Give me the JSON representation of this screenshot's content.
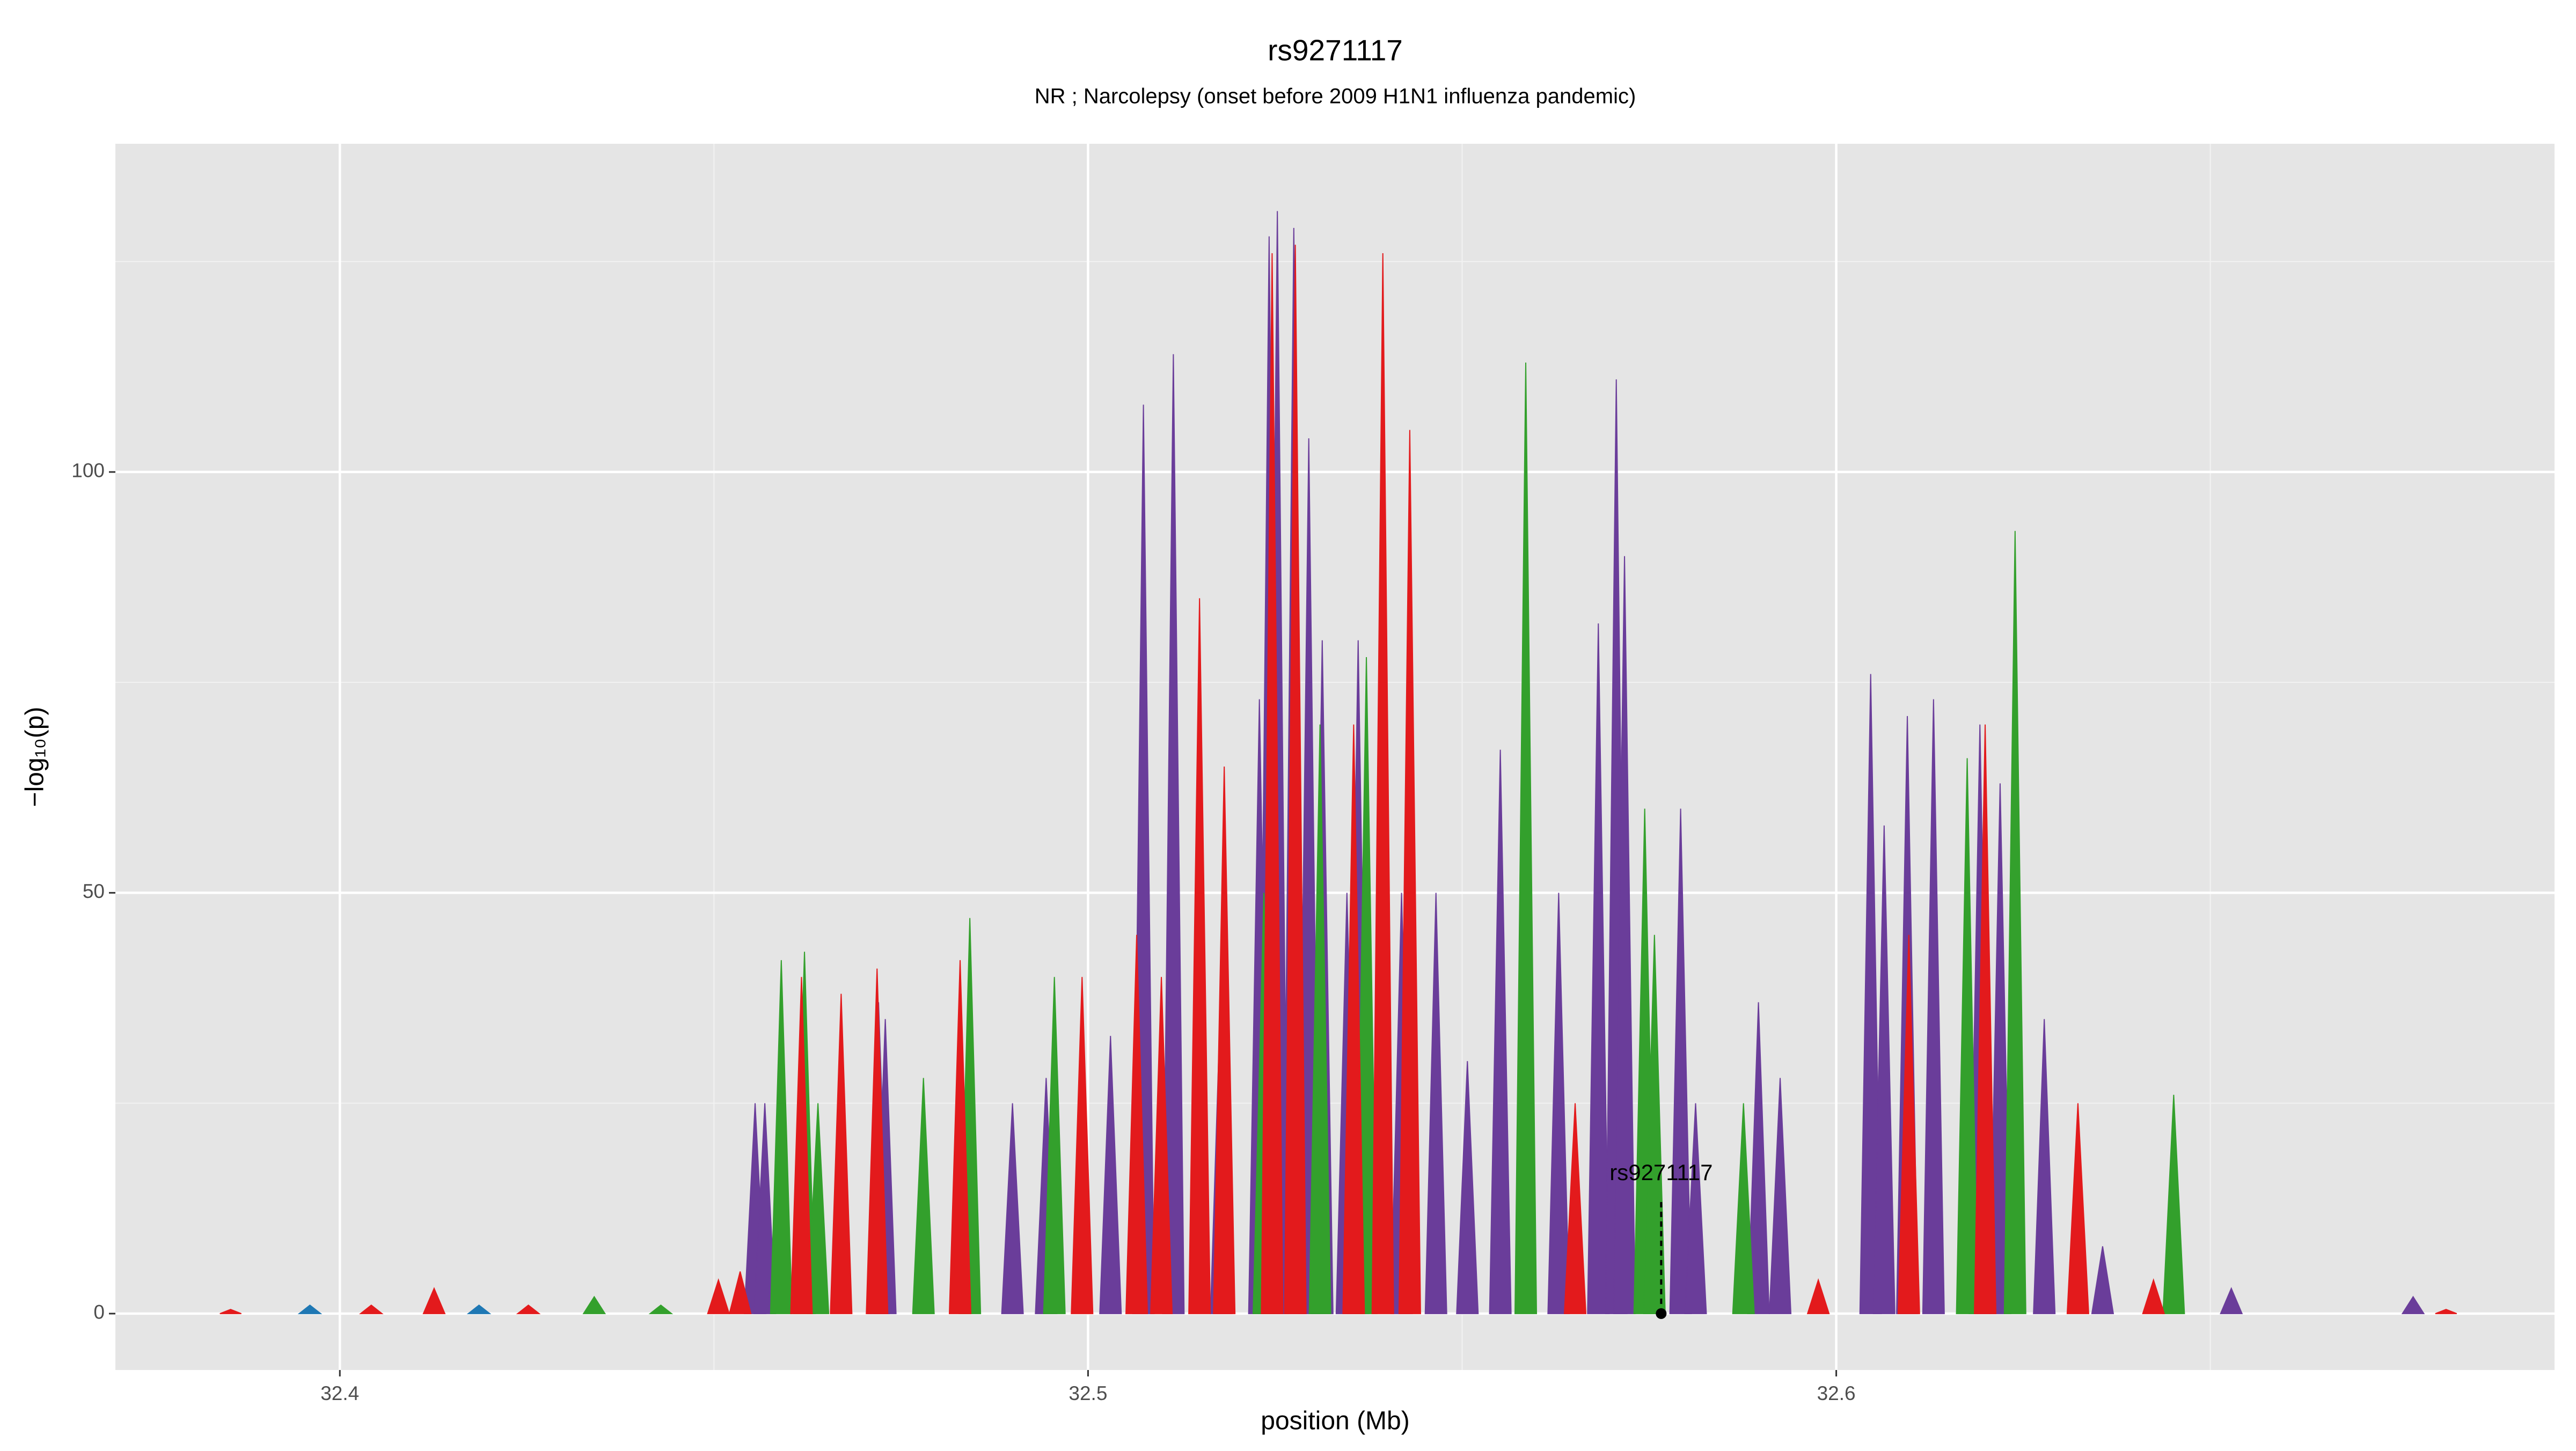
{
  "chart_data": {
    "type": "area",
    "title": "rs9271117",
    "subtitle": "NR ; Narcolepsy (onset before 2009 H1N1 influenza pandemic)",
    "x_label": "position (Mb)",
    "y_label": "−log₁₀(p)",
    "xlim": [
      32.37,
      32.696
    ],
    "xticks": [
      32.4,
      32.5,
      32.6
    ],
    "ylim": [
      -6.7,
      139
    ],
    "yticks": [
      0,
      50,
      100
    ],
    "grid": true,
    "series": [
      {
        "color": "#6a3d9a",
        "x": [
          32.4555,
          32.4568,
          32.472,
          32.4729,
          32.4899,
          32.4944,
          32.503,
          32.5074,
          32.5114,
          32.5178,
          32.5229,
          32.5242,
          32.5253,
          32.5275,
          32.5295,
          32.5313,
          32.5346,
          32.5361,
          32.5419,
          32.5465,
          32.5507,
          32.5551,
          32.5629,
          32.5682,
          32.5706,
          32.5717,
          32.5792,
          32.5812,
          32.5896,
          32.5925,
          32.6046,
          32.6064,
          32.6095,
          32.613,
          32.6192,
          32.6219,
          32.6278,
          32.6356,
          32.6528,
          32.6771
        ],
        "values": [
          25,
          25,
          37,
          35,
          25,
          28,
          33,
          108,
          114,
          40,
          73,
          128,
          131,
          129,
          104,
          80,
          50,
          80,
          50,
          50,
          30,
          67,
          50,
          82,
          111,
          90,
          60,
          25,
          37,
          28,
          76,
          58,
          71,
          73,
          70,
          63,
          35,
          8,
          3,
          2
        ]
      },
      {
        "color": "#33a02c",
        "x": [
          32.434,
          32.4429,
          32.459,
          32.4621,
          32.4639,
          32.478,
          32.4842,
          32.4955,
          32.5235,
          32.531,
          32.5372,
          32.5585,
          32.5744,
          32.5757,
          32.5876,
          32.6175,
          32.6239,
          32.6451
        ],
        "values": [
          2,
          1,
          42,
          43,
          25,
          28,
          47,
          40,
          50,
          70,
          78,
          113,
          60,
          45,
          25,
          66,
          93,
          26
        ]
      },
      {
        "color": "#e31a1c",
        "x": [
          32.3854,
          32.4042,
          32.4126,
          32.4252,
          32.4506,
          32.4535,
          32.4617,
          32.467,
          32.4718,
          32.4829,
          32.4992,
          32.5065,
          32.5098,
          32.5149,
          32.5182,
          32.5246,
          32.5277,
          32.5355,
          32.5394,
          32.543,
          32.5651,
          32.5976,
          32.6097,
          32.6199,
          32.6323,
          32.6424,
          32.6815
        ],
        "values": [
          0.5,
          1,
          3,
          1,
          4,
          5,
          40,
          38,
          41,
          42,
          40,
          45,
          40,
          85,
          65,
          126,
          127,
          70,
          126,
          105,
          25,
          4,
          45,
          70,
          25,
          4,
          0.5
        ]
      },
      {
        "color": "#1f78b4",
        "x": [
          32.396,
          32.4186
        ],
        "values": [
          1,
          1
        ]
      }
    ],
    "annotation": {
      "label": "rs9271117",
      "x": 32.5766,
      "y": 0
    }
  }
}
